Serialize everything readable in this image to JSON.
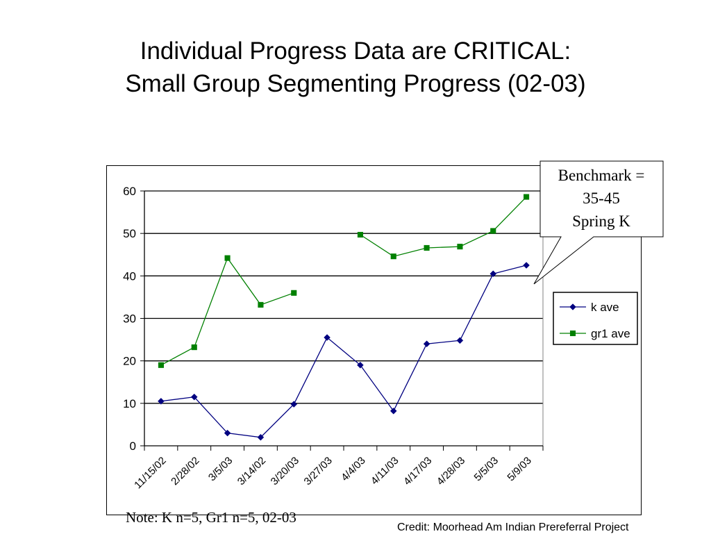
{
  "slide": {
    "title_line1": "Individual Progress Data are CRITICAL:",
    "title_line2": "Small Group Segmenting Progress (02-03)",
    "note": "Note:  K n=5, Gr1 n=5, 02-03",
    "credit": "Credit:  Moorhead Am Indian Prereferral Project"
  },
  "callout": {
    "line1": "Benchmark =",
    "line2": "35-45",
    "line3": "Spring K"
  },
  "colors": {
    "k_ave": "#000080",
    "gr1_ave": "#008000",
    "grid": "#000000"
  },
  "chart_data": {
    "type": "line",
    "categories": [
      "11/15/02",
      "2/28/02",
      "3/5/03",
      "3/14/02",
      "3/20/03",
      "3/27/03",
      "4/4/03",
      "4/11/03",
      "4/17/03",
      "4/28/03",
      "5/5/03",
      "5/9/03"
    ],
    "series": [
      {
        "name": "k ave",
        "marker": "diamond",
        "values": [
          10.5,
          11.5,
          3,
          2,
          9.8,
          25.5,
          19,
          8.2,
          24,
          24.8,
          40.5,
          42.5
        ]
      },
      {
        "name": "gr1 ave",
        "marker": "square",
        "values": [
          19,
          23.2,
          44.2,
          33.2,
          36,
          null,
          49.7,
          44.6,
          46.6,
          46.9,
          50.6,
          58.6
        ]
      }
    ],
    "ylim": [
      0,
      60
    ],
    "yticks": [
      0,
      10,
      20,
      30,
      40,
      50,
      60
    ],
    "grid": true,
    "legend_position": "right"
  }
}
